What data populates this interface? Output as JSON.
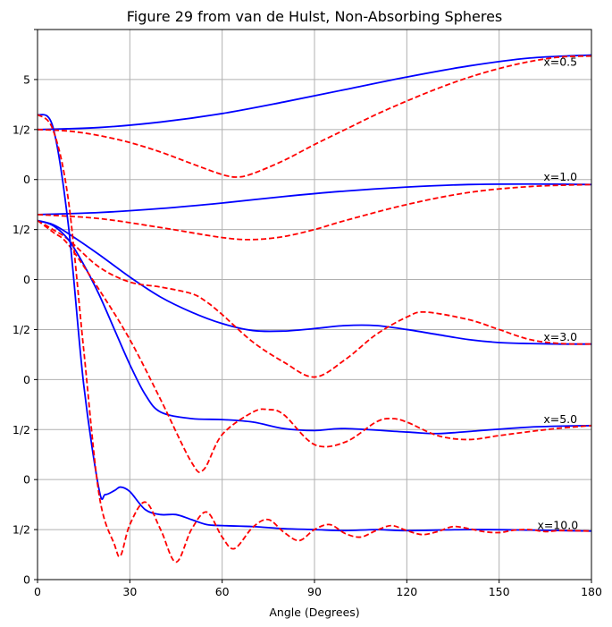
{
  "chart_data": {
    "type": "line",
    "title": "Figure 29 from van de Hulst, Non-Absorbing Spheres",
    "xlabel": "Angle (Degrees)",
    "ylabel": "",
    "xlim": [
      0,
      180
    ],
    "ylim": [
      0,
      11
    ],
    "grid": true,
    "x_ticks": [
      0,
      30,
      60,
      90,
      120,
      150,
      180
    ],
    "y_ticks": [
      {
        "value": 0,
        "label": "0"
      },
      {
        "value": 1,
        "label": "1/2"
      },
      {
        "value": 2,
        "label": "0"
      },
      {
        "value": 3,
        "label": "1/2"
      },
      {
        "value": 4,
        "label": "0"
      },
      {
        "value": 5,
        "label": "1/2"
      },
      {
        "value": 6,
        "label": "0"
      },
      {
        "value": 7,
        "label": "1/2"
      },
      {
        "value": 8,
        "label": "0"
      },
      {
        "value": 9,
        "label": "1/2"
      },
      {
        "value": 10,
        "label": "5"
      }
    ],
    "groups": [
      {
        "label": "x=0.5",
        "label_x": 165,
        "label_y": 10.35,
        "solid": {
          "x": [
            0,
            20,
            40,
            60,
            80,
            100,
            120,
            140,
            160,
            180
          ],
          "y": [
            9.0,
            9.04,
            9.15,
            9.32,
            9.55,
            9.8,
            10.05,
            10.27,
            10.43,
            10.49
          ]
        },
        "dashed": {
          "x": [
            0,
            10,
            20,
            30,
            40,
            50,
            60,
            65,
            70,
            80,
            90,
            100,
            110,
            120,
            130,
            140,
            150,
            160,
            170,
            180
          ],
          "y": [
            9.0,
            8.97,
            8.88,
            8.74,
            8.55,
            8.32,
            8.1,
            8.05,
            8.12,
            8.38,
            8.7,
            9.0,
            9.3,
            9.57,
            9.82,
            10.04,
            10.22,
            10.36,
            10.45,
            10.47
          ]
        }
      },
      {
        "label": "x=1.0",
        "label_x": 165,
        "label_y": 8.05,
        "solid": {
          "x": [
            0,
            20,
            40,
            60,
            80,
            100,
            120,
            140,
            160,
            180
          ],
          "y": [
            7.3,
            7.34,
            7.42,
            7.53,
            7.66,
            7.77,
            7.85,
            7.9,
            7.91,
            7.9
          ]
        },
        "dashed": {
          "x": [
            0,
            20,
            40,
            60,
            70,
            80,
            90,
            100,
            120,
            140,
            160,
            180
          ],
          "y": [
            7.3,
            7.22,
            7.04,
            6.84,
            6.8,
            6.86,
            7.0,
            7.18,
            7.5,
            7.74,
            7.86,
            7.9
          ]
        }
      },
      {
        "label": "x=3.0",
        "label_x": 165,
        "label_y": 4.85,
        "solid": {
          "x": [
            0,
            5,
            10,
            20,
            30,
            40,
            50,
            60,
            70,
            80,
            90,
            100,
            110,
            120,
            130,
            140,
            150,
            160,
            170,
            180
          ],
          "y": [
            7.18,
            7.1,
            6.92,
            6.5,
            6.05,
            5.65,
            5.35,
            5.12,
            4.98,
            4.97,
            5.02,
            5.08,
            5.08,
            5.0,
            4.9,
            4.8,
            4.74,
            4.72,
            4.71,
            4.71
          ]
        },
        "dashed": {
          "x": [
            0,
            5,
            10,
            20,
            30,
            40,
            50,
            55,
            60,
            70,
            80,
            90,
            100,
            110,
            120,
            126,
            140,
            150,
            160,
            170,
            180
          ],
          "y": [
            7.18,
            7.0,
            6.8,
            6.25,
            5.95,
            5.85,
            5.72,
            5.55,
            5.3,
            4.75,
            4.35,
            4.05,
            4.4,
            4.9,
            5.25,
            5.35,
            5.2,
            5.0,
            4.8,
            4.72,
            4.71
          ]
        }
      },
      {
        "label": "x=5.0",
        "label_x": 165,
        "label_y": 3.2,
        "solid": {
          "x": [
            0,
            5,
            10,
            15,
            20,
            25,
            30,
            35,
            40,
            50,
            60,
            70,
            80,
            90,
            100,
            120,
            130,
            140,
            160,
            180
          ],
          "y": [
            7.18,
            7.08,
            6.8,
            6.3,
            5.7,
            5.0,
            4.3,
            3.7,
            3.35,
            3.22,
            3.2,
            3.15,
            3.02,
            2.98,
            3.02,
            2.95,
            2.92,
            2.96,
            3.05,
            3.08
          ]
        },
        "dashed": {
          "x": [
            0,
            5,
            10,
            20,
            30,
            40,
            50,
            54,
            60,
            70,
            75,
            80,
            90,
            100,
            110,
            115,
            120,
            130,
            140,
            150,
            160,
            170,
            180
          ],
          "y": [
            7.18,
            6.95,
            6.7,
            5.8,
            4.8,
            3.6,
            2.35,
            2.2,
            2.9,
            3.35,
            3.4,
            3.3,
            2.7,
            2.75,
            3.15,
            3.22,
            3.15,
            2.88,
            2.8,
            2.88,
            2.96,
            3.03,
            3.08
          ]
        }
      },
      {
        "label": "x=10.0",
        "label_x": 163,
        "label_y": 1.08,
        "solid": {
          "x": [
            0,
            5,
            10,
            15,
            20,
            22,
            25,
            27,
            30,
            35,
            40,
            45,
            50,
            55,
            60,
            70,
            80,
            90,
            100,
            110,
            120,
            140,
            160,
            180
          ],
          "y": [
            9.3,
            9.05,
            7.1,
            3.9,
            1.8,
            1.7,
            1.78,
            1.85,
            1.76,
            1.4,
            1.3,
            1.3,
            1.2,
            1.1,
            1.08,
            1.06,
            1.02,
            1.0,
            0.98,
            1.0,
            0.98,
            1.0,
            0.99,
            0.97
          ]
        },
        "dashed": {
          "x": [
            0,
            5,
            10,
            15,
            20,
            25,
            27,
            30,
            35,
            40,
            45,
            50,
            55,
            60,
            64,
            70,
            75,
            80,
            85,
            90,
            95,
            100,
            105,
            110,
            115,
            120,
            125,
            130,
            135,
            140,
            145,
            150,
            155,
            160,
            165,
            170,
            180
          ],
          "y": [
            9.3,
            9.0,
            7.6,
            4.6,
            1.7,
            0.7,
            0.48,
            1.1,
            1.55,
            1.0,
            0.35,
            1.0,
            1.35,
            0.85,
            0.62,
            1.05,
            1.2,
            0.95,
            0.78,
            1.0,
            1.1,
            0.92,
            0.85,
            0.98,
            1.08,
            0.98,
            0.9,
            0.96,
            1.06,
            1.02,
            0.96,
            0.94,
            0.99,
            1.0,
            0.96,
            0.98,
            0.97
          ]
        }
      }
    ],
    "colors": {
      "solid": "#0000ff",
      "dashed": "#ff0000",
      "grid": "#b0b0b0",
      "axis": "#000000"
    }
  }
}
